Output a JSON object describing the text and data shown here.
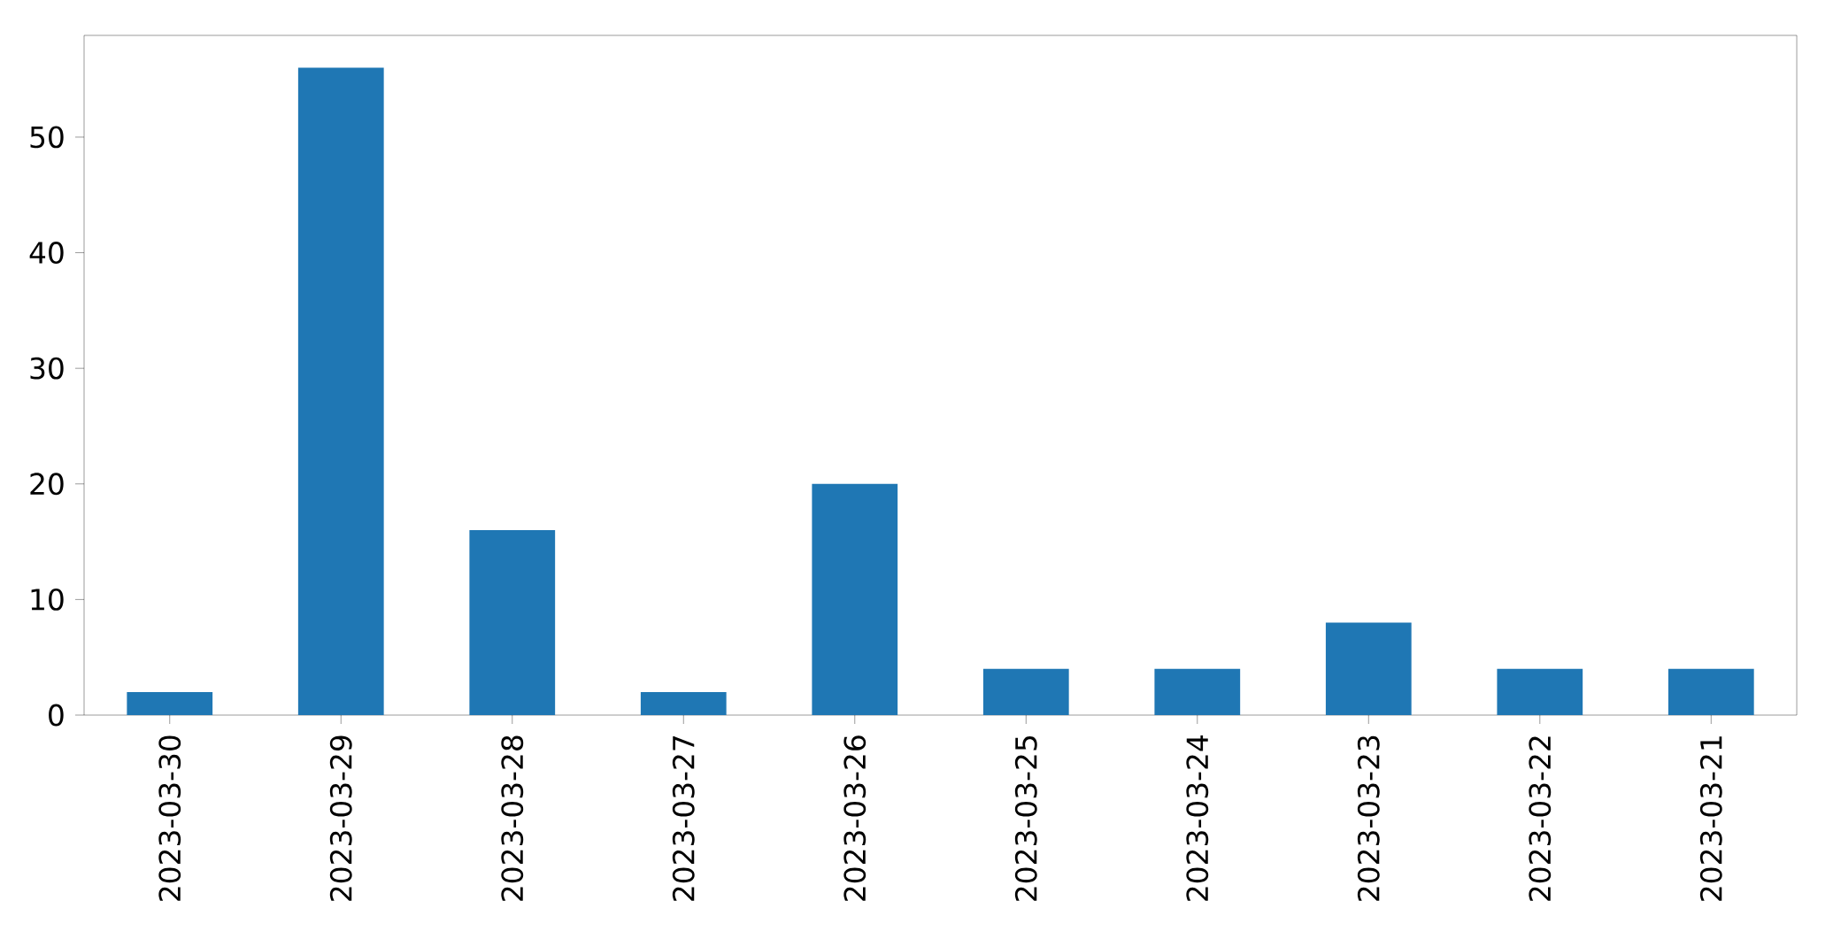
{
  "chart_data": {
    "type": "bar",
    "categories": [
      "2023-03-30",
      "2023-03-29",
      "2023-03-28",
      "2023-03-27",
      "2023-03-26",
      "2023-03-25",
      "2023-03-24",
      "2023-03-23",
      "2023-03-22",
      "2023-03-21"
    ],
    "values": [
      2,
      56,
      16,
      2,
      20,
      4,
      4,
      8,
      4,
      4
    ],
    "color": "#1f77b4",
    "ylim": [
      0,
      58.8
    ],
    "yticks": [
      0,
      10,
      20,
      30,
      40,
      50
    ],
    "grid": false
  }
}
